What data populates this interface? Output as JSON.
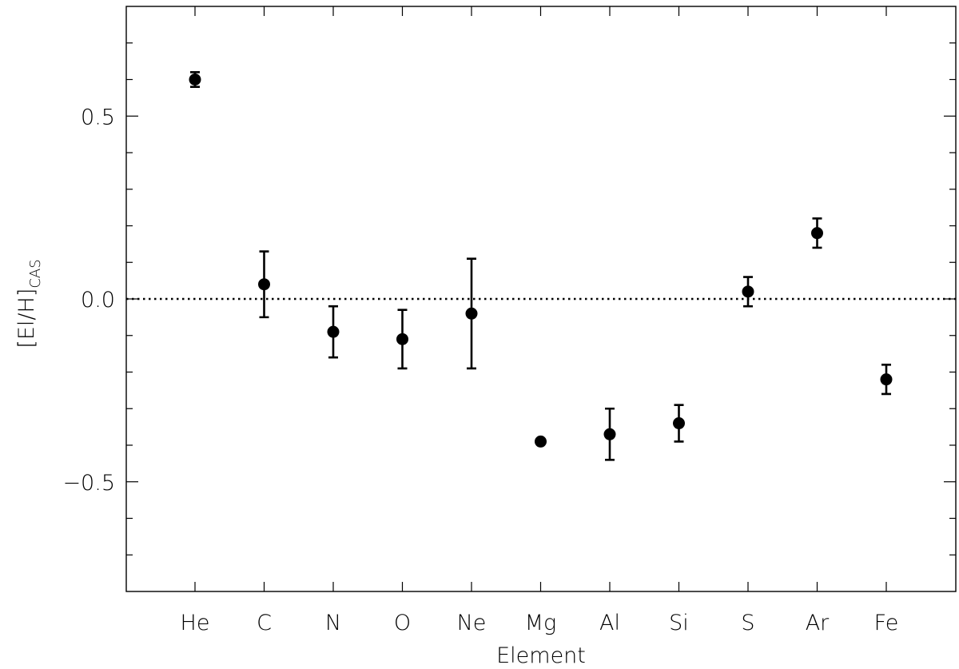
{
  "chart_data": {
    "type": "scatter",
    "title": "",
    "xlabel": "Element",
    "ylabel": {
      "main": "[El/H]",
      "subscript": "CAS"
    },
    "categories": [
      "He",
      "C",
      "N",
      "O",
      "Ne",
      "Mg",
      "Al",
      "Si",
      "S",
      "Ar",
      "Fe"
    ],
    "ylim": [
      -0.8,
      0.8
    ],
    "ytick_labels": [
      {
        "value": 0.5,
        "label": "0.5"
      },
      {
        "value": 0.0,
        "label": "0.0"
      },
      {
        "value": -0.5,
        "label": "−0.5"
      }
    ],
    "y_minor_step": 0.1,
    "reference_line": {
      "y": 0.0,
      "style": "dotted"
    },
    "grid": false,
    "series": [
      {
        "points": [
          {
            "x": "He",
            "y": 0.6,
            "err_low": 0.02,
            "err_high": 0.02
          },
          {
            "x": "C",
            "y": 0.04,
            "err_low": 0.09,
            "err_high": 0.09
          },
          {
            "x": "N",
            "y": -0.09,
            "err_low": 0.07,
            "err_high": 0.07
          },
          {
            "x": "O",
            "y": -0.11,
            "err_low": 0.08,
            "err_high": 0.08
          },
          {
            "x": "Ne",
            "y": -0.04,
            "err_low": 0.15,
            "err_high": 0.15
          },
          {
            "x": "Mg",
            "y": -0.39,
            "err_low": 0.0,
            "err_high": 0.0
          },
          {
            "x": "Al",
            "y": -0.37,
            "err_low": 0.07,
            "err_high": 0.07
          },
          {
            "x": "Si",
            "y": -0.34,
            "err_low": 0.05,
            "err_high": 0.05
          },
          {
            "x": "S",
            "y": 0.02,
            "err_low": 0.04,
            "err_high": 0.04
          },
          {
            "x": "Ar",
            "y": 0.18,
            "err_low": 0.04,
            "err_high": 0.04
          },
          {
            "x": "Fe",
            "y": -0.22,
            "err_low": 0.04,
            "err_high": 0.04
          }
        ]
      }
    ]
  }
}
